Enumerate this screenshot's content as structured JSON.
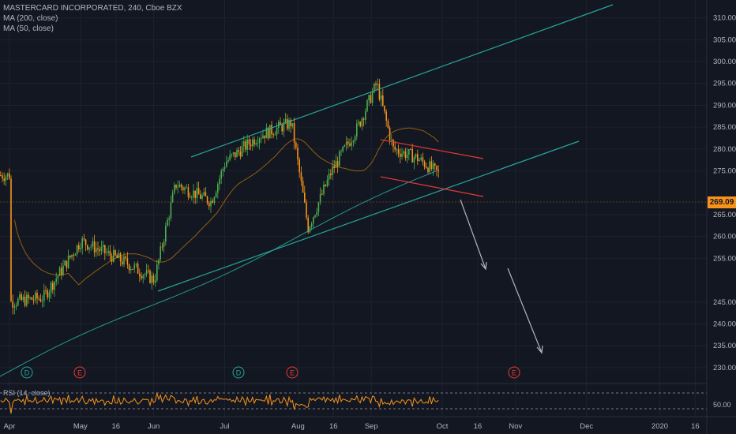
{
  "legend": {
    "title": "MASTERCARD INCORPORATED, 240, Cboe BZX",
    "ma200": "MA (200, close)",
    "ma50": "MA (50, close)"
  },
  "rsi_label": "RSI (14, close)",
  "last_price": "269.09",
  "price_axis": [
    "310.00",
    "305.00",
    "300.00",
    "295.00",
    "290.00",
    "285.00",
    "280.00",
    "275.00",
    "265.00",
    "260.00",
    "255.00",
    "245.00",
    "240.00",
    "235.00",
    "230.00"
  ],
  "rsi_axis": "50.00",
  "time_axis": [
    "Apr",
    "May",
    "16",
    "Jun",
    "Jul",
    "Aug",
    "16",
    "Sep",
    "Oct",
    "16",
    "Nov",
    "Dec",
    "2020",
    "16"
  ],
  "event_markers": [
    "D",
    "E",
    "D",
    "E",
    "E"
  ],
  "colors": {
    "background": "#131722",
    "up_candle": "#4caf50",
    "down_candle": "#f7931a",
    "trend_channel": "#26a69a",
    "wedge": "#e53935",
    "ma": "#ff9800",
    "projection_arrow": "#b2b5be"
  },
  "chart_data": {
    "type": "candlestick",
    "symbol": "MASTERCARD INCORPORATED",
    "interval": "240",
    "exchange": "Cboe BZX",
    "ylim": [
      228,
      313
    ],
    "indicators": [
      "MA (200, close)",
      "MA (50, close)",
      "RSI (14, close)"
    ],
    "approx_close_path": [
      {
        "date": "2019-04-01",
        "close": 245
      },
      {
        "date": "2019-04-15",
        "close": 246
      },
      {
        "date": "2019-05-01",
        "close": 259
      },
      {
        "date": "2019-05-20",
        "close": 254
      },
      {
        "date": "2019-06-01",
        "close": 250
      },
      {
        "date": "2019-06-10",
        "close": 272
      },
      {
        "date": "2019-06-25",
        "close": 268
      },
      {
        "date": "2019-07-01",
        "close": 277
      },
      {
        "date": "2019-07-15",
        "close": 283
      },
      {
        "date": "2019-07-29",
        "close": 286
      },
      {
        "date": "2019-08-05",
        "close": 262
      },
      {
        "date": "2019-08-15",
        "close": 275
      },
      {
        "date": "2019-08-26",
        "close": 285
      },
      {
        "date": "2019-09-03",
        "close": 295
      },
      {
        "date": "2019-09-10",
        "close": 280
      },
      {
        "date": "2019-09-20",
        "close": 278
      },
      {
        "date": "2019-09-30",
        "close": 274
      }
    ]
  }
}
